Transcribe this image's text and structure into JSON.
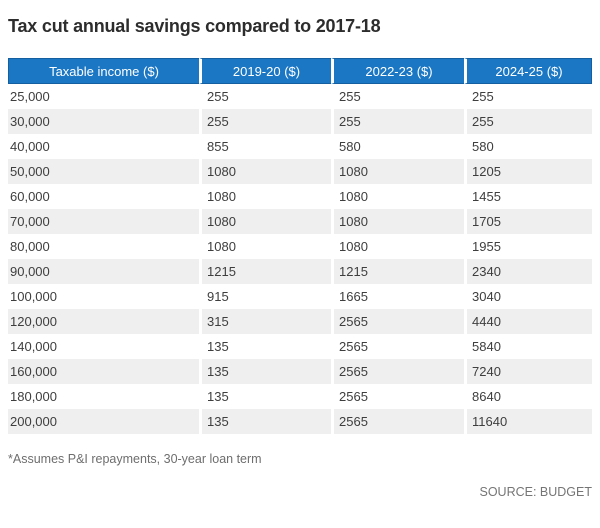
{
  "title": "Tax cut annual savings compared to 2017-18",
  "table": {
    "columns": [
      "Taxable income ($)",
      "2019-20 ($)",
      "2022-23 ($)",
      "2024-25 ($)"
    ],
    "rows": [
      [
        "25,000",
        "255",
        "255",
        "255"
      ],
      [
        "30,000",
        "255",
        "255",
        "255"
      ],
      [
        "40,000",
        "855",
        "580",
        "580"
      ],
      [
        "50,000",
        "1080",
        "1080",
        "1205"
      ],
      [
        "60,000",
        "1080",
        "1080",
        "1455"
      ],
      [
        "70,000",
        "1080",
        "1080",
        "1705"
      ],
      [
        "80,000",
        "1080",
        "1080",
        "1955"
      ],
      [
        "90,000",
        "1215",
        "1215",
        "2340"
      ],
      [
        "100,000",
        "915",
        "1665",
        "3040"
      ],
      [
        "120,000",
        "315",
        "2565",
        "4440"
      ],
      [
        "140,000",
        "135",
        "2565",
        "5840"
      ],
      [
        "160,000",
        "135",
        "2565",
        "7240"
      ],
      [
        "180,000",
        "135",
        "2565",
        "8640"
      ],
      [
        "200,000",
        "135",
        "2565",
        "11640"
      ]
    ]
  },
  "footnote": "*Assumes P&I repayments, 30-year loan term",
  "source": "SOURCE: BUDGET",
  "colors": {
    "header_bg": "#1b77c4",
    "header_border": "#135fa0",
    "row_alt_bg": "#efefef",
    "body_text": "#3e3e3e",
    "muted_text": "#6e6e6e"
  },
  "chart_data": {
    "type": "table",
    "title": "Tax cut annual savings compared to 2017-18",
    "columns": [
      "Taxable income ($)",
      "2019-20 ($)",
      "2022-23 ($)",
      "2024-25 ($)"
    ],
    "categories": [
      "25,000",
      "30,000",
      "40,000",
      "50,000",
      "60,000",
      "70,000",
      "80,000",
      "90,000",
      "100,000",
      "120,000",
      "140,000",
      "160,000",
      "180,000",
      "200,000"
    ],
    "series": [
      {
        "name": "2019-20 ($)",
        "values": [
          255,
          255,
          855,
          1080,
          1080,
          1080,
          1080,
          1215,
          915,
          315,
          135,
          135,
          135,
          135
        ]
      },
      {
        "name": "2022-23 ($)",
        "values": [
          255,
          255,
          580,
          1080,
          1080,
          1080,
          1080,
          1215,
          1665,
          2565,
          2565,
          2565,
          2565,
          2565
        ]
      },
      {
        "name": "2024-25 ($)",
        "values": [
          255,
          255,
          580,
          1205,
          1455,
          1705,
          1955,
          2340,
          3040,
          4440,
          5840,
          7240,
          8640,
          11640
        ]
      }
    ],
    "footnote": "*Assumes P&I repayments, 30-year loan term",
    "source": "SOURCE: BUDGET",
    "layout": {
      "striped_rows": true,
      "header_style": "blue-banner",
      "value_alignment": "left"
    }
  }
}
